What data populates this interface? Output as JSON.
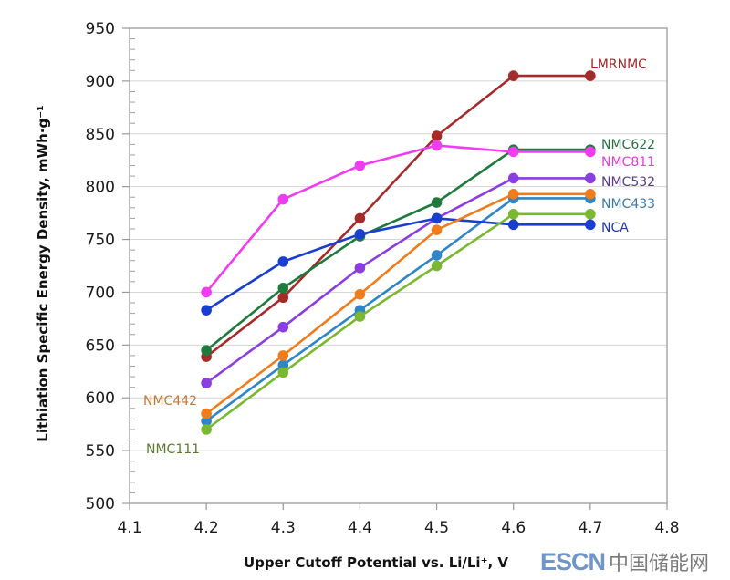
{
  "chart_data": {
    "type": "line",
    "title": "",
    "xlabel": "Upper Cutoff Potential vs. Li/Li⁺, V",
    "ylabel": "Lithiation Specific Energy Density, mWh·g⁻¹",
    "xlim": [
      4.1,
      4.8
    ],
    "ylim": [
      500,
      950
    ],
    "x_ticks": [
      "4.1",
      "4.2",
      "4.3",
      "4.4",
      "4.5",
      "4.6",
      "4.7",
      "4.8"
    ],
    "y_ticks": [
      "500",
      "550",
      "600",
      "650",
      "700",
      "750",
      "800",
      "850",
      "900",
      "950"
    ],
    "grid": "horizontal",
    "legend": "inline labels",
    "x": [
      4.2,
      4.3,
      4.4,
      4.5,
      4.6,
      4.7
    ],
    "series": [
      {
        "name": "LMRNMC",
        "color": "#a52a2a",
        "label_color": "#a0282d",
        "values": [
          639,
          695,
          770,
          848,
          905,
          905
        ]
      },
      {
        "name": "NMC622",
        "color": "#1f7a3e",
        "label_color": "#2a6e45",
        "values": [
          645,
          704,
          753,
          785,
          835,
          835
        ]
      },
      {
        "name": "NMC811",
        "color": "#f03cf0",
        "label_color": "#e040d8",
        "values": [
          700,
          788,
          820,
          839,
          833,
          833
        ]
      },
      {
        "name": "NMC532",
        "color": "#8a3de0",
        "label_color": "#5a3a8a",
        "values": [
          614,
          667,
          723,
          770,
          808,
          808
        ]
      },
      {
        "name": "NMC433",
        "color": "#2e86c8",
        "label_color": "#3a7aa8",
        "values": [
          578,
          631,
          683,
          735,
          789,
          789
        ]
      },
      {
        "name": "NCA",
        "color": "#1a3fd0",
        "label_color": "#1e3aa8",
        "values": [
          683,
          729,
          755,
          770,
          764,
          764
        ]
      },
      {
        "name": "NMC442",
        "color": "#f07c1c",
        "label_color": "#c07a3a",
        "values": [
          585,
          640,
          698,
          759,
          793,
          793
        ]
      },
      {
        "name": "NMC111",
        "color": "#7ab830",
        "label_color": "#5a7a30",
        "values": [
          570,
          624,
          677,
          725,
          774,
          774
        ]
      }
    ]
  },
  "watermark": {
    "latin": "ESCN",
    "cjk": "中国储能网"
  }
}
